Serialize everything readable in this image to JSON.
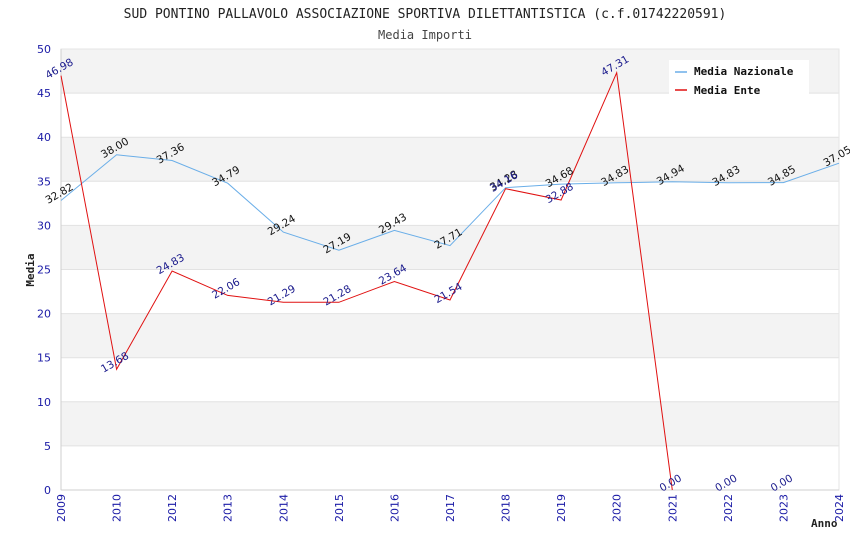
{
  "chart_data": {
    "type": "line",
    "title": "SUD PONTINO PALLAVOLO ASSOCIAZIONE SPORTIVA DILETTANTISTICA (c.f.01742220591)",
    "subtitle": "Media Importi",
    "xlabel": "Anno",
    "ylabel": "Media",
    "ylim": [
      0,
      50
    ],
    "yticks": [
      0,
      5,
      10,
      15,
      20,
      25,
      30,
      35,
      40,
      45,
      50
    ],
    "categories": [
      "2009",
      "2010",
      "2012",
      "2013",
      "2014",
      "2015",
      "2016",
      "2017",
      "2018",
      "2019",
      "2020",
      "2021",
      "2022",
      "2023",
      "2024"
    ],
    "series": [
      {
        "name": "Media Nazionale",
        "color": "#6aaee8",
        "values": [
          32.82,
          38.0,
          37.36,
          34.79,
          29.24,
          27.19,
          29.43,
          27.71,
          34.28,
          34.68,
          34.83,
          34.94,
          34.83,
          34.85,
          37.05
        ],
        "labels": [
          "32.82",
          "38.00",
          "37.36",
          "34.79",
          "29.24",
          "27.19",
          "29.43",
          "27.71",
          "34.28",
          "34.68",
          "34.83",
          "34.94",
          "34.83",
          "34.85",
          "37.05"
        ]
      },
      {
        "name": "Media Ente",
        "color": "#e01010",
        "values": [
          46.98,
          13.68,
          24.83,
          22.06,
          21.29,
          21.28,
          23.64,
          21.54,
          34.16,
          32.88,
          47.31,
          0.0,
          null,
          null,
          null
        ],
        "labels": [
          "46.98",
          "13.68",
          "24.83",
          "22.06",
          "21.29",
          "21.28",
          "23.64",
          "21.54",
          "34.16",
          "32.88",
          "47.31",
          "0.00",
          "0.00",
          "0.00",
          null
        ]
      }
    ],
    "grid": true,
    "legend_position": "top-right"
  }
}
